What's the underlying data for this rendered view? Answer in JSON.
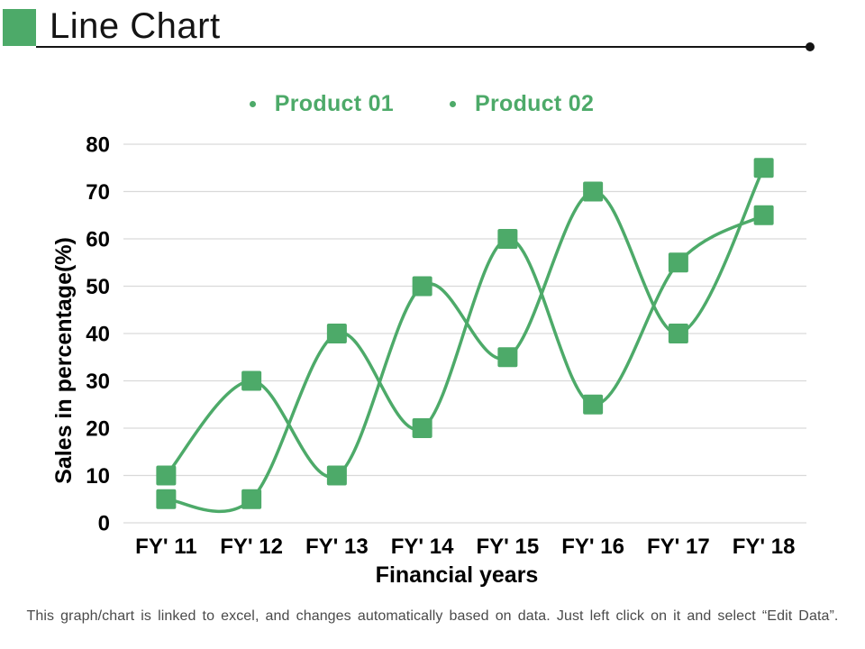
{
  "header": {
    "title": "Line Chart"
  },
  "legend": {
    "items": [
      {
        "label": "Product 01"
      },
      {
        "label": "Product 02"
      }
    ]
  },
  "footer": {
    "note": "This graph/chart is linked to excel, and changes automatically based on data. Just left click on it and select “Edit Data”."
  },
  "colors": {
    "series_green": "#4DAA69",
    "grid_line": "#D9D9D9",
    "title_text": "#141414",
    "footer_text": "#4a4a4a"
  },
  "chart_data": {
    "type": "line",
    "title": "",
    "categories": [
      "FY' 11",
      "FY' 12",
      "FY' 13",
      "FY' 14",
      "FY' 15",
      "FY' 16",
      "FY' 17",
      "FY' 18"
    ],
    "series": [
      {
        "name": "Product 01",
        "values": [
          10,
          30,
          10,
          50,
          35,
          70,
          40,
          75
        ]
      },
      {
        "name": "Product 02",
        "values": [
          5,
          5,
          40,
          20,
          60,
          25,
          55,
          65
        ]
      }
    ],
    "xlabel": "Financial years",
    "ylabel": "Sales in percentage(%)",
    "ylim": [
      0,
      80
    ],
    "ytick_step": 10,
    "grid": true,
    "legend_position": "top",
    "line_style": "smooth",
    "marker": "square"
  }
}
